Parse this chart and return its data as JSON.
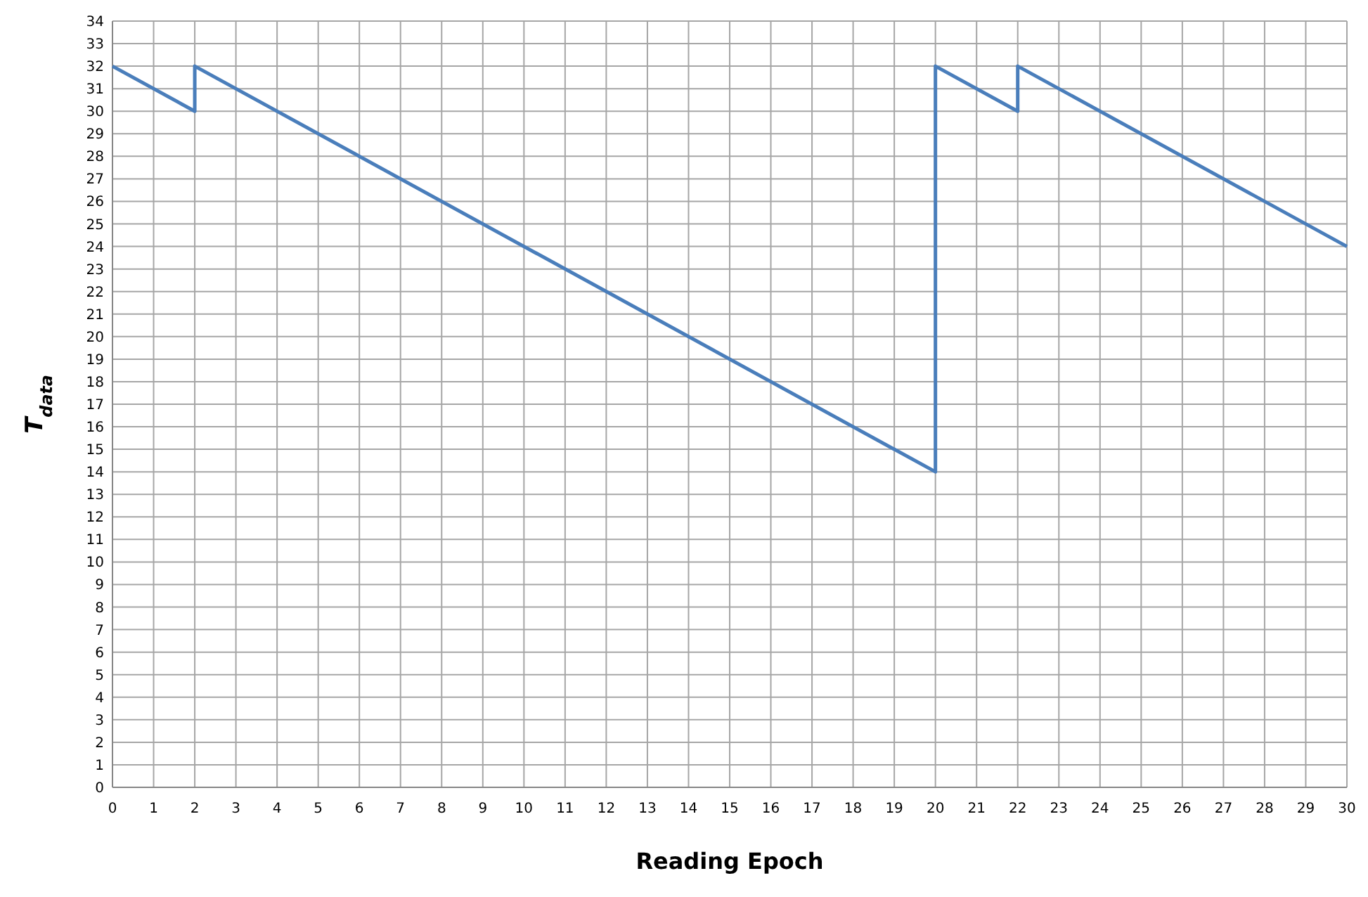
{
  "chart_data": {
    "type": "line",
    "xlabel": "Reading Epoch",
    "ylabel": "T$_{data}$",
    "x": [
      0,
      2,
      2,
      20,
      20,
      22,
      22,
      30
    ],
    "series": [
      {
        "color": "#4a7ebb",
        "values": [
          32,
          30,
          32,
          14,
          32,
          30,
          32,
          24
        ]
      }
    ],
    "xlim": [
      0,
      30
    ],
    "xticks": [
      0,
      1,
      2,
      3,
      4,
      5,
      6,
      7,
      8,
      9,
      10,
      11,
      12,
      13,
      14,
      15,
      16,
      17,
      18,
      19,
      20,
      21,
      22,
      23,
      24,
      25,
      26,
      27,
      28,
      29,
      30
    ],
    "ylim": [
      0,
      34
    ],
    "yticks": [
      0,
      1,
      2,
      3,
      4,
      5,
      6,
      7,
      8,
      9,
      10,
      11,
      12,
      13,
      14,
      15,
      16,
      17,
      18,
      19,
      20,
      21,
      22,
      23,
      24,
      25,
      26,
      27,
      28,
      29,
      30,
      31,
      32,
      33,
      34
    ],
    "grid": true,
    "marker": "none",
    "line_style": "solid"
  }
}
